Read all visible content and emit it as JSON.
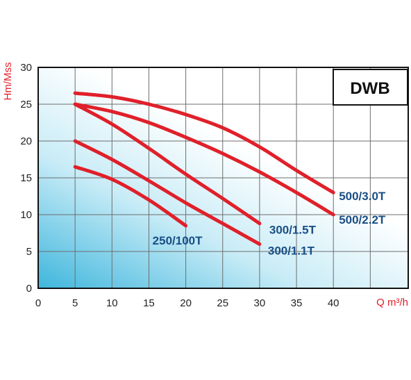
{
  "chart_data": {
    "type": "line",
    "title": "DWB",
    "xlabel": "Q m³/h",
    "ylabel": "Hm/Mss",
    "xlim": [
      0,
      50
    ],
    "ylim": [
      0,
      30
    ],
    "x_ticks": [
      "0",
      "5",
      "10",
      "15",
      "20",
      "25",
      "30",
      "35",
      "40"
    ],
    "y_ticks": [
      "0",
      "5",
      "10",
      "15",
      "20",
      "25",
      "30"
    ],
    "grid": true,
    "colors": {
      "curve": "#e0202a",
      "label": "#1a4f86",
      "axis_title": "#e0202a",
      "background_accent": "#3fb6dc"
    },
    "series": [
      {
        "name": "500/3.0T",
        "x": [
          5,
          10,
          15,
          20,
          25,
          30,
          35,
          40
        ],
        "y": [
          26.5,
          26.0,
          25.0,
          23.6,
          21.8,
          19.2,
          16.0,
          13.0
        ]
      },
      {
        "name": "500/2.2T",
        "x": [
          5,
          10,
          15,
          20,
          25,
          30,
          35,
          40
        ],
        "y": [
          25.0,
          24.0,
          22.5,
          20.5,
          18.3,
          15.8,
          13.0,
          10.0
        ]
      },
      {
        "name": "300/1.5T",
        "x": [
          5,
          10,
          15,
          20,
          25,
          30
        ],
        "y": [
          25.0,
          22.3,
          19.0,
          15.5,
          12.2,
          8.8
        ]
      },
      {
        "name": "300/1.1T",
        "x": [
          5,
          10,
          15,
          20,
          25,
          30
        ],
        "y": [
          20.0,
          17.5,
          14.6,
          11.6,
          8.8,
          6.0
        ]
      },
      {
        "name": "250/100T",
        "x": [
          5,
          10,
          15,
          20
        ],
        "y": [
          16.5,
          14.8,
          12.0,
          8.5
        ]
      }
    ]
  }
}
